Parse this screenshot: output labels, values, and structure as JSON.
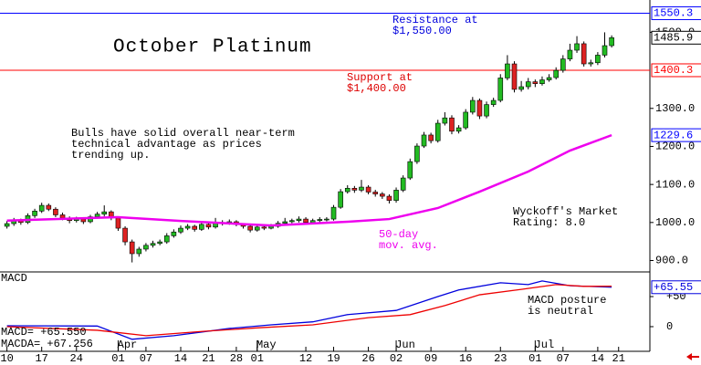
{
  "chart_data": {
    "type": "candlestick",
    "title": "October Platinum",
    "annotations": {
      "resistance": [
        "Resistance at",
        "$1,550.00"
      ],
      "support": [
        "Support at",
        "$1,400.00"
      ],
      "comment": [
        "Bulls have solid overall near-term",
        "technical advantage as prices",
        "trending up."
      ],
      "rating": [
        "Wyckoff's Market",
        "Rating: 8.0"
      ],
      "ma_note": [
        "50-day",
        "mov. avg."
      ],
      "macd_note": [
        "MACD posture",
        "is neutral"
      ]
    },
    "xlim": [
      -1,
      92.5
    ],
    "xticks": [
      {
        "value": 0,
        "label": "10"
      },
      {
        "value": 5,
        "label": "17"
      },
      {
        "value": 10,
        "label": "24"
      },
      {
        "value": 16,
        "label": "01"
      },
      {
        "value": 20,
        "label": "07"
      },
      {
        "value": 25,
        "label": "14"
      },
      {
        "value": 29,
        "label": "21"
      },
      {
        "value": 33,
        "label": "28"
      },
      {
        "value": 36,
        "label": "01"
      },
      {
        "value": 43,
        "label": "12"
      },
      {
        "value": 47,
        "label": "19"
      },
      {
        "value": 52,
        "label": "26"
      },
      {
        "value": 56,
        "label": "02"
      },
      {
        "value": 61,
        "label": "09"
      },
      {
        "value": 66,
        "label": "16"
      },
      {
        "value": 71,
        "label": "23"
      },
      {
        "value": 76,
        "label": "01"
      },
      {
        "value": 80,
        "label": "07"
      },
      {
        "value": 85,
        "label": "14"
      },
      {
        "value": 88,
        "label": "21"
      }
    ],
    "month_ticks": [
      {
        "value": 16,
        "label": "Apr"
      },
      {
        "value": 36,
        "label": "May"
      },
      {
        "value": 56,
        "label": "Jun"
      },
      {
        "value": 76,
        "label": "Jul"
      }
    ],
    "ylim": [
      870,
      1585
    ],
    "yticks": [
      {
        "value": 1500,
        "label": "1500.0"
      },
      {
        "value": 1300,
        "label": "1300.0"
      },
      {
        "value": 1200,
        "label": "1200.0"
      },
      {
        "value": 1100,
        "label": "1100.0"
      },
      {
        "value": 1000,
        "label": "1000.0"
      },
      {
        "value": 900,
        "label": "900.0"
      }
    ],
    "up_color": "#22bb22",
    "down_color": "#dd2222",
    "levels": [
      {
        "value": 1550.3,
        "color": "#0000ff"
      },
      {
        "value": 1400.3,
        "color": "#ff0000"
      }
    ],
    "candles": [
      [
        990,
        1004,
        984,
        997
      ],
      [
        997,
        1012,
        991,
        1005
      ],
      [
        1005,
        1010,
        994,
        1000
      ],
      [
        1000,
        1024,
        996,
        1018
      ],
      [
        1018,
        1036,
        1012,
        1030
      ],
      [
        1030,
        1052,
        1025,
        1045
      ],
      [
        1045,
        1050,
        1030,
        1035
      ],
      [
        1035,
        1040,
        1014,
        1020
      ],
      [
        1020,
        1026,
        1006,
        1012
      ],
      [
        1012,
        1016,
        998,
        1005
      ],
      [
        1005,
        1015,
        1000,
        1009
      ],
      [
        1009,
        1014,
        996,
        1002
      ],
      [
        1002,
        1020,
        998,
        1015
      ],
      [
        1015,
        1028,
        1010,
        1022
      ],
      [
        1022,
        1045,
        1016,
        1028
      ],
      [
        1028,
        1032,
        1006,
        1012
      ],
      [
        1012,
        1016,
        978,
        985
      ],
      [
        985,
        990,
        940,
        949
      ],
      [
        949,
        955,
        895,
        918
      ],
      [
        918,
        936,
        910,
        930
      ],
      [
        930,
        946,
        924,
        940
      ],
      [
        940,
        952,
        934,
        945
      ],
      [
        945,
        955,
        940,
        949
      ],
      [
        949,
        972,
        944,
        965
      ],
      [
        965,
        982,
        960,
        975
      ],
      [
        975,
        992,
        970,
        985
      ],
      [
        985,
        996,
        980,
        990
      ],
      [
        990,
        994,
        976,
        982
      ],
      [
        982,
        1000,
        978,
        995
      ],
      [
        995,
        1000,
        982,
        988
      ],
      [
        988,
        1012,
        984,
        1000
      ],
      [
        1000,
        1006,
        992,
        998
      ],
      [
        998,
        1008,
        994,
        1002
      ],
      [
        1002,
        1006,
        990,
        995
      ],
      [
        995,
        998,
        984,
        990
      ],
      [
        990,
        994,
        974,
        980
      ],
      [
        980,
        994,
        976,
        988
      ],
      [
        988,
        992,
        980,
        985
      ],
      [
        985,
        996,
        982,
        990
      ],
      [
        990,
        1004,
        986,
        998
      ],
      [
        998,
        1012,
        994,
        1002
      ],
      [
        1002,
        1010,
        998,
        1005
      ],
      [
        1005,
        1016,
        1000,
        1009
      ],
      [
        1009,
        1014,
        994,
        1000
      ],
      [
        1000,
        1010,
        996,
        1005
      ],
      [
        1005,
        1014,
        1000,
        1008
      ],
      [
        1008,
        1014,
        1003,
        1009
      ],
      [
        1009,
        1046,
        1005,
        1040
      ],
      [
        1040,
        1088,
        1036,
        1081
      ],
      [
        1081,
        1098,
        1076,
        1090
      ],
      [
        1090,
        1096,
        1078,
        1085
      ],
      [
        1085,
        1112,
        1080,
        1093
      ],
      [
        1093,
        1098,
        1074,
        1080
      ],
      [
        1080,
        1086,
        1068,
        1075
      ],
      [
        1075,
        1080,
        1062,
        1069
      ],
      [
        1069,
        1074,
        1050,
        1058
      ],
      [
        1058,
        1092,
        1052,
        1085
      ],
      [
        1085,
        1124,
        1080,
        1117
      ],
      [
        1117,
        1168,
        1112,
        1160
      ],
      [
        1160,
        1208,
        1154,
        1201
      ],
      [
        1201,
        1238,
        1196,
        1230
      ],
      [
        1230,
        1236,
        1208,
        1215
      ],
      [
        1215,
        1270,
        1210,
        1261
      ],
      [
        1261,
        1290,
        1255,
        1275
      ],
      [
        1275,
        1282,
        1232,
        1240
      ],
      [
        1240,
        1256,
        1234,
        1249
      ],
      [
        1249,
        1298,
        1244,
        1290
      ],
      [
        1290,
        1330,
        1284,
        1321
      ],
      [
        1321,
        1326,
        1272,
        1280
      ],
      [
        1280,
        1318,
        1274,
        1310
      ],
      [
        1310,
        1328,
        1304,
        1321
      ],
      [
        1321,
        1390,
        1316,
        1380
      ],
      [
        1380,
        1440,
        1374,
        1417
      ],
      [
        1417,
        1424,
        1342,
        1350
      ],
      [
        1350,
        1372,
        1344,
        1357
      ],
      [
        1357,
        1380,
        1350,
        1370
      ],
      [
        1370,
        1376,
        1356,
        1365
      ],
      [
        1365,
        1384,
        1360,
        1375
      ],
      [
        1375,
        1390,
        1370,
        1381
      ],
      [
        1381,
        1408,
        1376,
        1400
      ],
      [
        1400,
        1440,
        1394,
        1430
      ],
      [
        1430,
        1470,
        1424,
        1453
      ],
      [
        1453,
        1490,
        1446,
        1470
      ],
      [
        1470,
        1476,
        1410,
        1417
      ],
      [
        1417,
        1428,
        1410,
        1420
      ],
      [
        1420,
        1448,
        1414,
        1440
      ],
      [
        1440,
        1500,
        1434,
        1465
      ],
      [
        1465,
        1492,
        1460,
        1485.9
      ]
    ],
    "ma": {
      "color": "#ee00ee",
      "x": [
        0,
        16,
        25,
        38,
        49,
        55,
        62,
        68,
        75,
        81,
        87
      ],
      "values": [
        1005,
        1014,
        1004,
        992,
        1002,
        1009,
        1038,
        1081,
        1134,
        1189,
        1229.6
      ]
    },
    "macd": {
      "title": "MACD",
      "readout": [
        "MACD= +65.550",
        "MACDA= +67.256"
      ],
      "ylim": [
        -41,
        91
      ],
      "yticks": [
        {
          "value": 50,
          "label": "+50"
        },
        0
      ],
      "series": [
        {
          "name": "MACD",
          "color": "#0000dd",
          "x": [
            0,
            13,
            18,
            24,
            32,
            38,
            44,
            49,
            56,
            62,
            65,
            71,
            75,
            77,
            81,
            87
          ],
          "values": [
            1.5,
            1,
            -21,
            -15,
            -3,
            3,
            8,
            20,
            27,
            50,
            61,
            73,
            70,
            76,
            68,
            65.55
          ],
          "last_label": "+65.55"
        },
        {
          "name": "MACDA",
          "color": "#ee0000",
          "x": [
            0,
            13,
            20,
            28,
            36,
            44,
            52,
            58,
            63,
            68,
            74,
            79,
            83,
            87
          ],
          "values": [
            0,
            -6,
            -15,
            -8,
            -2,
            3,
            15,
            20,
            35,
            53,
            62,
            70,
            67,
            67.256
          ]
        }
      ]
    }
  }
}
